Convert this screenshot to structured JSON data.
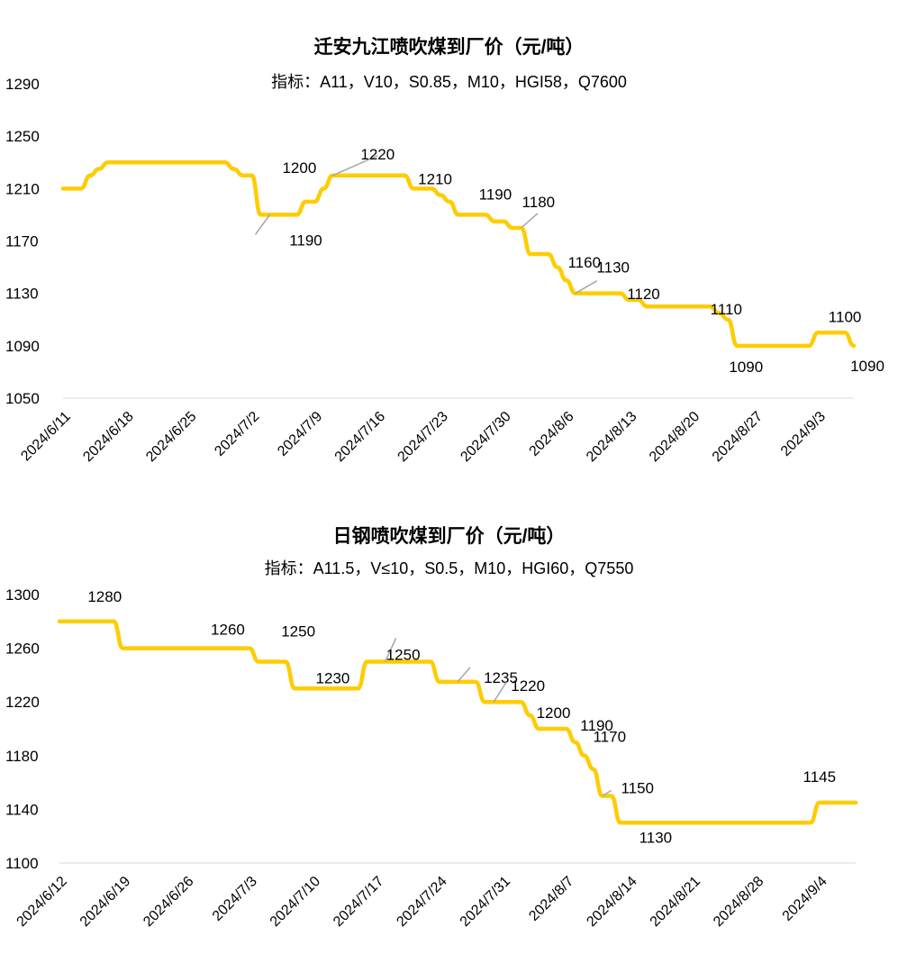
{
  "chart_data": [
    {
      "type": "line",
      "title": "迁安九江喷吹煤到厂价（元/吨）",
      "subtitle": "指标：A11，V10，S0.85，M10，HGI58，Q7600",
      "ylim": [
        1050,
        1290
      ],
      "yticks": [
        1050,
        1090,
        1130,
        1170,
        1210,
        1250,
        1290
      ],
      "xticks": [
        "2024/6/11",
        "2024/6/18",
        "2024/6/25",
        "2024/7/2",
        "2024/7/9",
        "2024/7/16",
        "2024/7/23",
        "2024/7/30",
        "2024/8/6",
        "2024/8/13",
        "2024/8/20",
        "2024/8/27",
        "2024/9/3"
      ],
      "grid": false,
      "color": "#FFCC00",
      "x": [
        0,
        1,
        2,
        3,
        4,
        5,
        6,
        7,
        8,
        9,
        10,
        11,
        12,
        13,
        14,
        15,
        16,
        17,
        18,
        19,
        20,
        21,
        22,
        23,
        24,
        25,
        26,
        27,
        28,
        29,
        30,
        31,
        32,
        33,
        34,
        35,
        36,
        37,
        38,
        39,
        40,
        41,
        42,
        43,
        44,
        45,
        46,
        47,
        48,
        49,
        50,
        51,
        52,
        53,
        54,
        55,
        56,
        57,
        58,
        59,
        60,
        61,
        62,
        63,
        64,
        65,
        66,
        67,
        68,
        69,
        70,
        71,
        72,
        73,
        74,
        75,
        76,
        77,
        78,
        79,
        80,
        81,
        82,
        83,
        84,
        85,
        86,
        87,
        88
      ],
      "values": [
        1210,
        1210,
        1210,
        1220,
        1225,
        1230,
        1230,
        1230,
        1230,
        1230,
        1230,
        1230,
        1230,
        1230,
        1230,
        1230,
        1230,
        1230,
        1230,
        1225,
        1220,
        1220,
        1190,
        1190,
        1190,
        1190,
        1190,
        1200,
        1200,
        1210,
        1220,
        1220,
        1220,
        1220,
        1220,
        1220,
        1220,
        1220,
        1220,
        1210,
        1210,
        1210,
        1205,
        1200,
        1190,
        1190,
        1190,
        1190,
        1185,
        1185,
        1180,
        1180,
        1160,
        1160,
        1160,
        1150,
        1140,
        1130,
        1130,
        1130,
        1130,
        1130,
        1130,
        1125,
        1125,
        1120,
        1120,
        1120,
        1120,
        1120,
        1120,
        1120,
        1120,
        1115,
        1110,
        1090,
        1090,
        1090,
        1090,
        1090,
        1090,
        1090,
        1090,
        1090,
        1100,
        1100,
        1100,
        1100,
        1090
      ],
      "annotations": [
        {
          "text": "1190",
          "x": 23,
          "y": 1190
        },
        {
          "text": "1200",
          "x": 27,
          "y": 1200
        },
        {
          "text": "1220",
          "x": 30,
          "y": 1220
        },
        {
          "text": "1210",
          "x": 42,
          "y": 1210
        },
        {
          "text": "1190",
          "x": 47,
          "y": 1190
        },
        {
          "text": "1180",
          "x": 51,
          "y": 1180
        },
        {
          "text": "1160",
          "x": 54,
          "y": 1160
        },
        {
          "text": "1130",
          "x": 57,
          "y": 1130
        },
        {
          "text": "1120",
          "x": 67,
          "y": 1120
        },
        {
          "text": "1110",
          "x": 74,
          "y": 1110
        },
        {
          "text": "1090",
          "x": 76,
          "y": 1090
        },
        {
          "text": "1100",
          "x": 84,
          "y": 1100
        },
        {
          "text": "1090",
          "x": 88,
          "y": 1090
        }
      ]
    },
    {
      "type": "line",
      "title": "日钢喷吹煤到厂价（元/吨）",
      "subtitle": "指标：A11.5，V≤10，S0.5，M10，HGI60，Q7550",
      "ylim": [
        1100,
        1300
      ],
      "yticks": [
        1100,
        1140,
        1180,
        1220,
        1260,
        1300
      ],
      "xticks": [
        "2024/6/12",
        "2024/6/19",
        "2024/6/26",
        "2024/7/3",
        "2024/7/10",
        "2024/7/17",
        "2024/7/24",
        "2024/7/31",
        "2024/8/7",
        "2024/8/14",
        "2024/8/21",
        "2024/8/28",
        "2024/9/4"
      ],
      "grid": false,
      "color": "#FFCC00",
      "x": [
        0,
        1,
        2,
        3,
        4,
        5,
        6,
        7,
        8,
        9,
        10,
        11,
        12,
        13,
        14,
        15,
        16,
        17,
        18,
        19,
        20,
        21,
        22,
        23,
        24,
        25,
        26,
        27,
        28,
        29,
        30,
        31,
        32,
        33,
        34,
        35,
        36,
        37,
        38,
        39,
        40,
        41,
        42,
        43,
        44,
        45,
        46,
        47,
        48,
        49,
        50,
        51,
        52,
        53,
        54,
        55,
        56,
        57,
        58,
        59,
        60,
        61,
        62,
        63,
        64,
        65,
        66,
        67,
        68,
        69,
        70,
        71,
        72,
        73,
        74,
        75,
        76,
        77,
        78,
        79,
        80,
        81,
        82,
        83,
        84,
        85,
        86,
        87,
        88
      ],
      "values": [
        1280,
        1280,
        1280,
        1280,
        1280,
        1280,
        1280,
        1260,
        1260,
        1260,
        1260,
        1260,
        1260,
        1260,
        1260,
        1260,
        1260,
        1260,
        1260,
        1260,
        1260,
        1260,
        1250,
        1250,
        1250,
        1250,
        1230,
        1230,
        1230,
        1230,
        1230,
        1230,
        1230,
        1230,
        1250,
        1250,
        1250,
        1250,
        1250,
        1250,
        1250,
        1250,
        1235,
        1235,
        1235,
        1235,
        1235,
        1220,
        1220,
        1220,
        1220,
        1220,
        1210,
        1200,
        1200,
        1200,
        1200,
        1190,
        1180,
        1170,
        1150,
        1150,
        1130,
        1130,
        1130,
        1130,
        1130,
        1130,
        1130,
        1130,
        1130,
        1130,
        1130,
        1130,
        1130,
        1130,
        1130,
        1130,
        1130,
        1130,
        1130,
        1130,
        1130,
        1130,
        1145,
        1145,
        1145,
        1145,
        1145
      ],
      "annotations": [
        {
          "text": "1280",
          "x": 6,
          "y": 1280
        },
        {
          "text": "1260",
          "x": 21,
          "y": 1260
        },
        {
          "text": "1250",
          "x": 25,
          "y": 1250
        },
        {
          "text": "1230",
          "x": 32,
          "y": 1230
        },
        {
          "text": "1250",
          "x": 36,
          "y": 1250
        },
        {
          "text": "1235",
          "x": 44,
          "y": 1235
        },
        {
          "text": "1220",
          "x": 48,
          "y": 1220
        },
        {
          "text": "1200",
          "x": 55,
          "y": 1200
        },
        {
          "text": "1190",
          "x": 57,
          "y": 1190
        },
        {
          "text": "1170",
          "x": 61,
          "y": 1170
        },
        {
          "text": "1150",
          "x": 60,
          "y": 1150
        },
        {
          "text": "1130",
          "x": 63,
          "y": 1130
        },
        {
          "text": "1145",
          "x": 84,
          "y": 1145
        }
      ]
    }
  ]
}
